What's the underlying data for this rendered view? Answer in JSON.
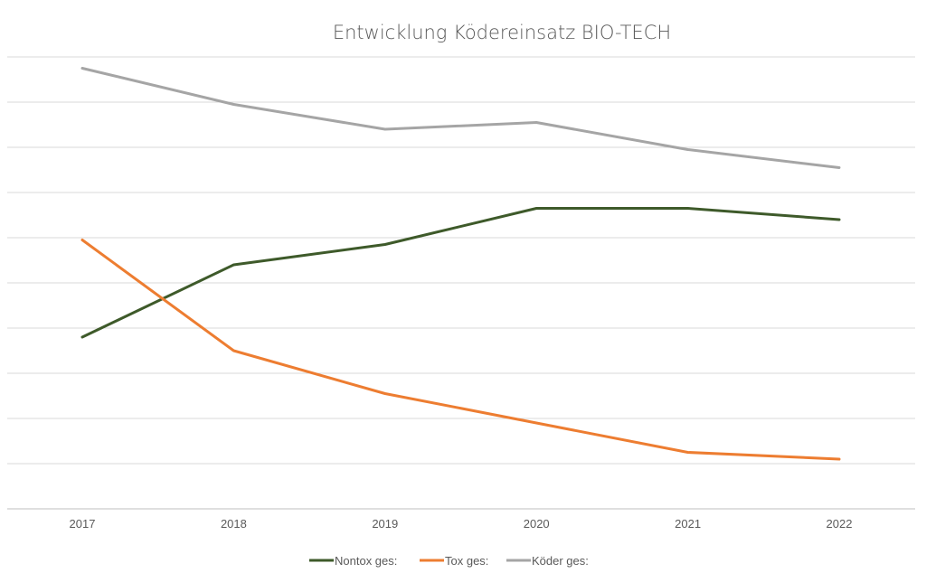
{
  "chart_data": {
    "type": "line",
    "title": "Entwicklung Ködereinsatz BIO-TECH",
    "categories": [
      "2017",
      "2018",
      "2019",
      "2020",
      "2021",
      "2022"
    ],
    "series": [
      {
        "name": "Nontox ges:",
        "color": "#3e5a2a",
        "values": [
          3.8,
          5.4,
          5.85,
          6.65,
          6.65,
          6.4
        ]
      },
      {
        "name": "Tox ges:",
        "color": "#ed7d31",
        "values": [
          5.95,
          3.5,
          2.55,
          1.9,
          1.25,
          1.1
        ]
      },
      {
        "name": "Köder ges:",
        "color": "#a5a5a5",
        "values": [
          9.75,
          8.95,
          8.4,
          8.55,
          7.95,
          7.55
        ]
      }
    ],
    "ylim": [
      0,
      10
    ],
    "grid": true,
    "legend_position": "bottom"
  }
}
